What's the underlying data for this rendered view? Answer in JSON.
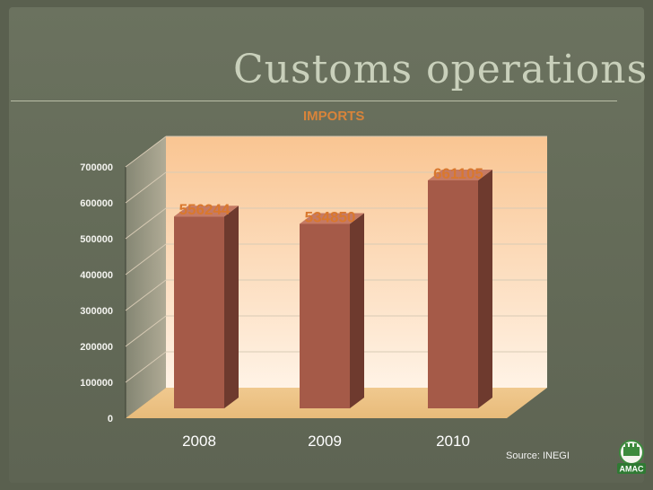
{
  "slide": {
    "title": "Customs operations",
    "subtitle": "IMPORTS",
    "source": "Source: INEGI",
    "logo_text": "AMAC"
  },
  "colors": {
    "background": "#5a604f",
    "bar_front": "#a55a48",
    "bar_side": "#6e3a2e",
    "bar_top": "#c57a64",
    "value_label": "#d9782e",
    "plot_wall": "#fbd4a8"
  },
  "chart_data": {
    "type": "bar",
    "title": "IMPORTS",
    "xlabel": "",
    "ylabel": "",
    "categories": [
      "2008",
      "2009",
      "2010"
    ],
    "values": [
      556244,
      534850,
      661105
    ],
    "ylim": [
      0,
      700000
    ],
    "yticks": [
      "0",
      "100000",
      "200000",
      "300000",
      "400000",
      "500000",
      "600000",
      "700000"
    ],
    "grid": true,
    "legend": "none"
  }
}
